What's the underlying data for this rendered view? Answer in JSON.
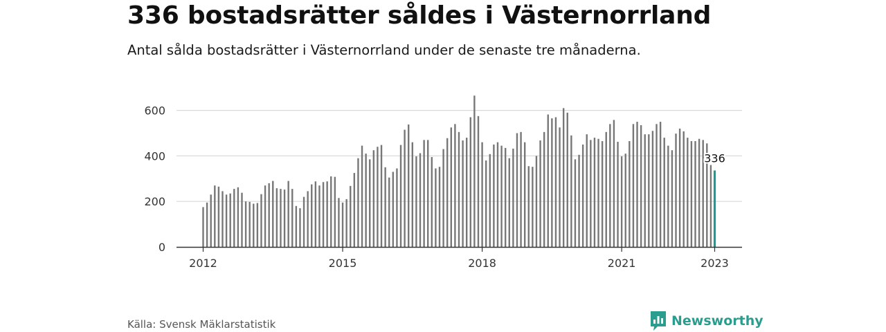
{
  "header": {
    "title": "336 bostadsrätter såldes i Västernorrland",
    "subtitle": "Antal sålda bostadsrätter i Västernorrland under de senaste tre månaderna."
  },
  "footer": {
    "source": "Källa: Svensk Mäklarstatistik",
    "brand": "Newsworthy",
    "brand_icon": "newsworthy-logo-icon"
  },
  "colors": {
    "bar": "#777777",
    "highlight": "#1a9b96",
    "grid": "#d9d9d9",
    "axis": "#333333",
    "brand": "#2a9d8f"
  },
  "chart_data": {
    "type": "bar",
    "title": "",
    "xlabel": "",
    "ylabel": "",
    "x_start": "2012-01",
    "x_end": "2023-01",
    "x_tick_labels": [
      "2012",
      "2015",
      "2018",
      "2021",
      "2023"
    ],
    "y_ticks": [
      0,
      200,
      400,
      600
    ],
    "ylim": [
      0,
      690
    ],
    "grid": true,
    "highlight_label": "336",
    "values": [
      175,
      195,
      230,
      270,
      265,
      245,
      230,
      235,
      255,
      262,
      238,
      200,
      198,
      190,
      193,
      232,
      270,
      280,
      290,
      258,
      255,
      252,
      290,
      255,
      180,
      170,
      220,
      245,
      275,
      288,
      270,
      285,
      288,
      310,
      308,
      215,
      195,
      210,
      268,
      325,
      390,
      445,
      410,
      385,
      425,
      440,
      448,
      350,
      305,
      330,
      345,
      448,
      515,
      538,
      460,
      398,
      412,
      470,
      470,
      395,
      345,
      352,
      430,
      478,
      525,
      540,
      505,
      468,
      480,
      570,
      665,
      575,
      460,
      380,
      408,
      450,
      460,
      445,
      435,
      390,
      432,
      500,
      505,
      460,
      355,
      352,
      400,
      468,
      505,
      582,
      565,
      570,
      525,
      610,
      590,
      490,
      385,
      405,
      450,
      495,
      470,
      480,
      475,
      465,
      505,
      540,
      558,
      462,
      398,
      410,
      465,
      540,
      550,
      535,
      495,
      495,
      510,
      540,
      550,
      480,
      445,
      425,
      498,
      520,
      508,
      480,
      465,
      465,
      475,
      470,
      455,
      360,
      336
    ]
  }
}
